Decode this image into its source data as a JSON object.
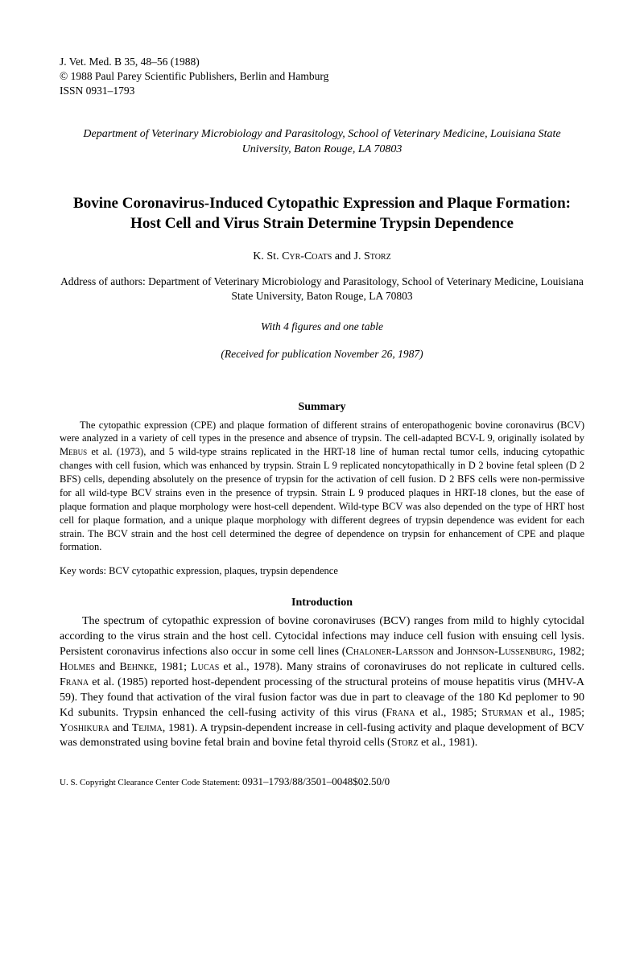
{
  "header": {
    "citation": "J. Vet. Med. B 35, 48–56 (1988)",
    "copyright": "© 1988 Paul Parey Scientific Publishers, Berlin and Hamburg",
    "issn": "ISSN 0931–1793"
  },
  "department": "Department of Veterinary Microbiology and Parasitology, School of Veterinary Medicine, Louisiana State University, Baton Rouge, LA 70803",
  "title": "Bovine Coronavirus-Induced Cytopathic Expression and Plaque Formation: Host Cell and Virus Strain Determine Trypsin Dependence",
  "authors": {
    "prefix1": "K. St. ",
    "name1": "Cyr-Coats",
    "and": " and J. ",
    "name2": "Storz"
  },
  "address": "Address of authors: Department of Veterinary Microbiology and Parasitology, School of Veterinary Medicine, Louisiana State University, Baton Rouge, LA 70803",
  "figures_note": "With 4 figures and one table",
  "received": "(Received for publication November 26, 1987)",
  "summary": {
    "heading": "Summary",
    "p1a": "The cytopathic expression (CPE) and plaque formation of different strains of enteropathogenic bovine coronavirus (BCV) were analyzed in a variety of cell types in the presence and absence of trypsin. The cell-adapted BCV-L 9, originally isolated by ",
    "p1_ref1": "Mebus",
    "p1b": " et al. (1973), and 5 wild-type strains replicated in the HRT-18 line of human rectal tumor cells, inducing cytopathic changes with cell fusion, which was enhanced by trypsin. Strain L 9 replicated noncytopathically in D 2 bovine fetal spleen (D 2 BFS) cells, depending absolutely on the presence of trypsin for the activation of cell fusion. D 2 BFS cells were non-permissive for all wild-type BCV strains even in the presence of trypsin. Strain L 9 produced plaques in HRT-18 clones, but the ease of plaque formation and plaque morphology were host-cell dependent. Wild-type BCV was also depended on the type of HRT host cell for plaque formation, and a unique plaque morphology with different degrees of trypsin dependence was evident for each strain. The BCV strain and the host cell determined the degree of dependence on trypsin for enhancement of CPE and plaque formation."
  },
  "keywords": "Key words: BCV cytopathic expression, plaques, trypsin dependence",
  "introduction": {
    "heading": "Introduction",
    "p1a": "The spectrum of cytopathic expression of bovine coronaviruses (BCV) ranges from mild to highly cytocidal according to the virus strain and the host cell. Cytocidal infections may induce cell fusion with ensuing cell lysis. Persistent coronavirus infections also occur in some cell lines (",
    "ref1": "Chaloner-Larsson",
    "p1b": " and ",
    "ref2": "Johnson-Lussenburg",
    "p1c": ", 1982; ",
    "ref3": "Holmes",
    "p1d": " and ",
    "ref4": "Behnke",
    "p1e": ", 1981; ",
    "ref5": "Lucas",
    "p1f": " et al., 1978). Many strains of coronaviruses do not replicate in cultured cells. ",
    "ref6": "Frana",
    "p1g": " et al. (1985) reported host-dependent processing of the structural proteins of mouse hepatitis virus (MHV-A 59). They found that activation of the viral fusion factor was due in part to cleavage of the 180 Kd peplomer to 90 Kd subunits. Trypsin enhanced the cell-fusing activity of this virus (",
    "ref7": "Frana",
    "p1h": " et al., 1985; ",
    "ref8": "Sturman",
    "p1i": " et al., 1985; ",
    "ref9": "Yoshikura",
    "p1j": " and ",
    "ref10": "Tejima",
    "p1k": ", 1981). A trypsin-dependent increase in cell-fusing activity and plaque development of BCV was demonstrated using bovine fetal brain and bovine fetal thyroid cells (",
    "ref11": "Storz",
    "p1l": " et al., 1981)."
  },
  "footer": {
    "label": "U. S. Copyright Clearance Center Code Statement: ",
    "code": "0931–1793/88/3501–0048$02.50/0"
  }
}
